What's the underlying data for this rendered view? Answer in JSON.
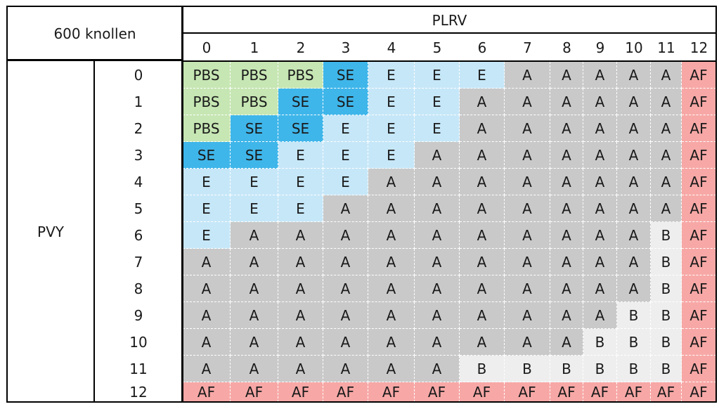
{
  "corner_label": "600 knollen",
  "column_group_label": "PLRV",
  "row_group_label": "PVY",
  "columns": [
    "0",
    "1",
    "2",
    "3",
    "4",
    "5",
    "6",
    "7",
    "8",
    "9",
    "10",
    "11",
    "12"
  ],
  "rows": [
    "0",
    "1",
    "2",
    "3",
    "4",
    "5",
    "6",
    "7",
    "8",
    "9",
    "10",
    "11",
    "12"
  ],
  "legend_colors": {
    "PBS": "#c6e6b3",
    "SE": "#3fb6ea",
    "E": "#c6e7f8",
    "A": "#c9c9c9",
    "B": "#eeeeee",
    "AF": "#f7a8a6"
  },
  "cells": [
    [
      "PBS",
      "PBS",
      "PBS",
      "SE",
      "E",
      "E",
      "E",
      "A",
      "A",
      "A",
      "A",
      "A",
      "AF"
    ],
    [
      "PBS",
      "PBS",
      "SE",
      "SE",
      "E",
      "E",
      "A",
      "A",
      "A",
      "A",
      "A",
      "A",
      "AF"
    ],
    [
      "PBS",
      "SE",
      "SE",
      "E",
      "E",
      "E",
      "A",
      "A",
      "A",
      "A",
      "A",
      "A",
      "AF"
    ],
    [
      "SE",
      "SE",
      "E",
      "E",
      "E",
      "A",
      "A",
      "A",
      "A",
      "A",
      "A",
      "A",
      "AF"
    ],
    [
      "E",
      "E",
      "E",
      "E",
      "A",
      "A",
      "A",
      "A",
      "A",
      "A",
      "A",
      "A",
      "AF"
    ],
    [
      "E",
      "E",
      "E",
      "A",
      "A",
      "A",
      "A",
      "A",
      "A",
      "A",
      "A",
      "A",
      "AF"
    ],
    [
      "E",
      "A",
      "A",
      "A",
      "A",
      "A",
      "A",
      "A",
      "A",
      "A",
      "A",
      "B",
      "AF"
    ],
    [
      "A",
      "A",
      "A",
      "A",
      "A",
      "A",
      "A",
      "A",
      "A",
      "A",
      "A",
      "B",
      "AF"
    ],
    [
      "A",
      "A",
      "A",
      "A",
      "A",
      "A",
      "A",
      "A",
      "A",
      "A",
      "A",
      "B",
      "AF"
    ],
    [
      "A",
      "A",
      "A",
      "A",
      "A",
      "A",
      "A",
      "A",
      "A",
      "A",
      "B",
      "B",
      "AF"
    ],
    [
      "A",
      "A",
      "A",
      "A",
      "A",
      "A",
      "A",
      "A",
      "A",
      "B",
      "B",
      "B",
      "AF"
    ],
    [
      "A",
      "A",
      "A",
      "A",
      "A",
      "A",
      "B",
      "B",
      "B",
      "B",
      "B",
      "B",
      "AF"
    ],
    [
      "AF",
      "AF",
      "AF",
      "AF",
      "AF",
      "AF",
      "AF",
      "AF",
      "AF",
      "AF",
      "AF",
      "AF",
      "AF"
    ]
  ]
}
